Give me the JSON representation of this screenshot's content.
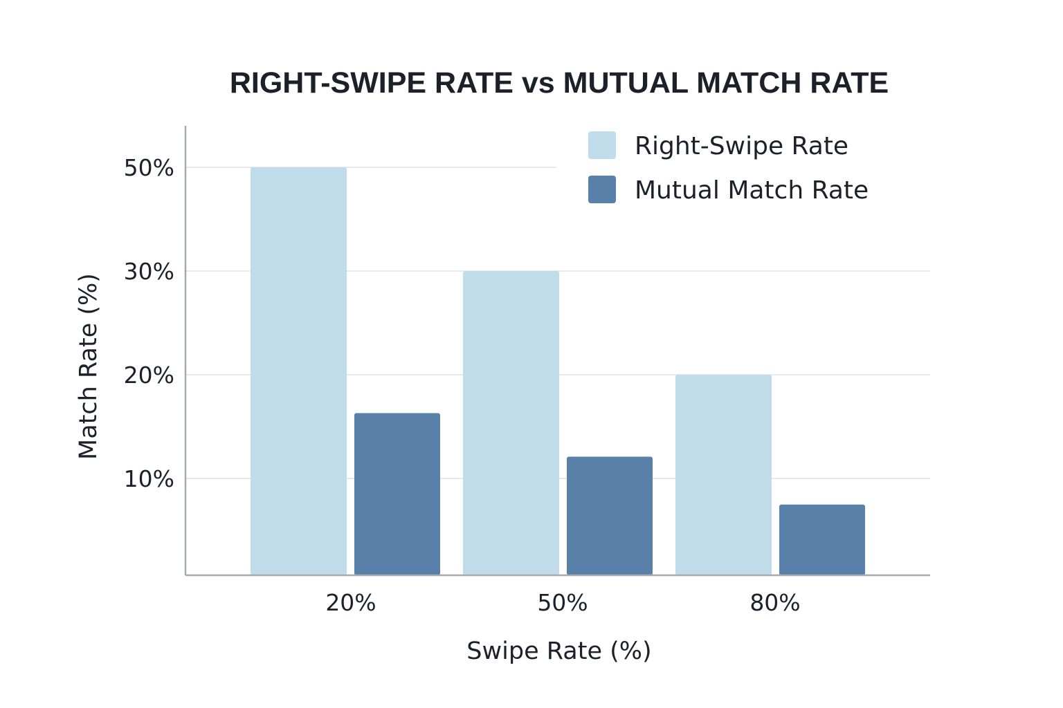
{
  "chart_data": {
    "type": "bar",
    "title": "RIGHT-SWIPE RATE vs MUTUAL MATCH RATE",
    "xlabel": "Swipe Rate (%)",
    "ylabel": "Match Rate (%)",
    "categories": [
      "20%",
      "50%",
      "80%"
    ],
    "series": [
      {
        "name": "Right-Swipe Rate",
        "values": [
          50,
          30,
          20
        ],
        "color": "#c0dcea"
      },
      {
        "name": "Mutual Match Rate",
        "values": [
          16.3,
          12.1,
          7.3
        ],
        "color": "#5880a8"
      }
    ],
    "y_ticks": [
      {
        "value": 10,
        "label": "10%"
      },
      {
        "value": 20,
        "label": "20%"
      },
      {
        "value": 30,
        "label": "30%"
      },
      {
        "value": 50,
        "label": "50%"
      }
    ],
    "y_axis_breakpoints": [
      0,
      10,
      20,
      30,
      50
    ],
    "grid": true,
    "legend": "top-right",
    "axis_color": "#a6aab0",
    "grid_color": "#e6e9ee"
  }
}
